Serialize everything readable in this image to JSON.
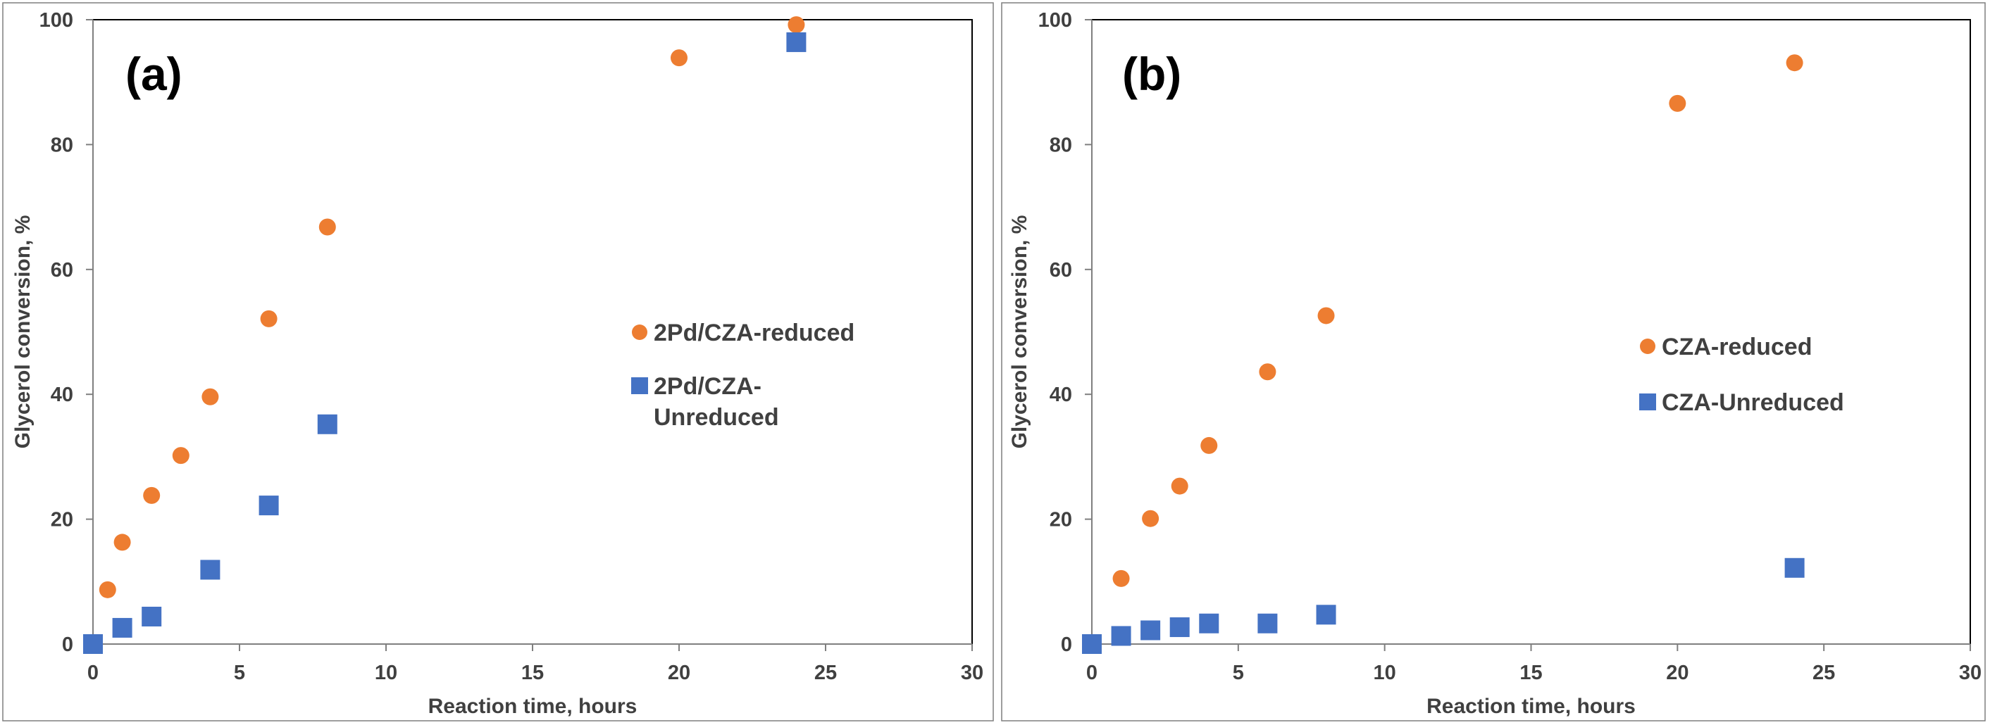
{
  "colors": {
    "orange": "#ED7D31",
    "blue": "#4472C4",
    "axis": "#7F7F7F",
    "frame": "#000000",
    "text": "#404040"
  },
  "chart_data": [
    {
      "type": "scatter",
      "panel_label": "(a)",
      "xlabel": "Reaction time, hours",
      "ylabel": "Glycerol conversion, %",
      "xlim": [
        0,
        30
      ],
      "ylim": [
        0,
        100
      ],
      "xticks": [
        0,
        5,
        10,
        15,
        20,
        25,
        30
      ],
      "yticks": [
        0,
        20,
        40,
        60,
        80,
        100
      ],
      "grid": false,
      "legend_position": "center-right",
      "series": [
        {
          "name": "2Pd/CZA-reduced",
          "legend_lines": [
            "2Pd/CZA-reduced"
          ],
          "marker": "circle",
          "color": "#ED7D31",
          "x": [
            0.5,
            1,
            2,
            3,
            4,
            6,
            8,
            20,
            24
          ],
          "y": [
            8.7,
            16.3,
            23.8,
            30.2,
            39.6,
            52.1,
            66.8,
            93.9,
            99.2
          ]
        },
        {
          "name": "2Pd/CZA-Unreduced",
          "legend_lines": [
            "2Pd/CZA-",
            "Unreduced"
          ],
          "marker": "square",
          "color": "#4472C4",
          "x": [
            0,
            1,
            2,
            4,
            6,
            8,
            24
          ],
          "y": [
            0,
            2.6,
            4.4,
            11.9,
            22.2,
            35.2,
            96.4
          ]
        }
      ]
    },
    {
      "type": "scatter",
      "panel_label": "(b)",
      "xlabel": "Reaction time, hours",
      "ylabel": "Glycerol conversion, %",
      "xlim": [
        0,
        30
      ],
      "ylim": [
        0,
        100
      ],
      "xticks": [
        0,
        5,
        10,
        15,
        20,
        25,
        30
      ],
      "yticks": [
        0,
        20,
        40,
        60,
        80,
        100
      ],
      "grid": false,
      "legend_position": "center-right",
      "series": [
        {
          "name": "CZA-reduced",
          "legend_lines": [
            "CZA-reduced"
          ],
          "marker": "circle",
          "color": "#ED7D31",
          "x": [
            1,
            2,
            3,
            4,
            6,
            8,
            20,
            24
          ],
          "y": [
            10.5,
            20.1,
            25.3,
            31.8,
            43.6,
            52.6,
            86.6,
            93.1
          ]
        },
        {
          "name": "CZA-Unreduced",
          "legend_lines": [
            "CZA-Unreduced"
          ],
          "marker": "square",
          "color": "#4472C4",
          "x": [
            0,
            1,
            2,
            3,
            4,
            6,
            8,
            24
          ],
          "y": [
            0,
            1.3,
            2.2,
            2.7,
            3.3,
            3.3,
            4.7,
            12.2
          ]
        }
      ]
    }
  ]
}
